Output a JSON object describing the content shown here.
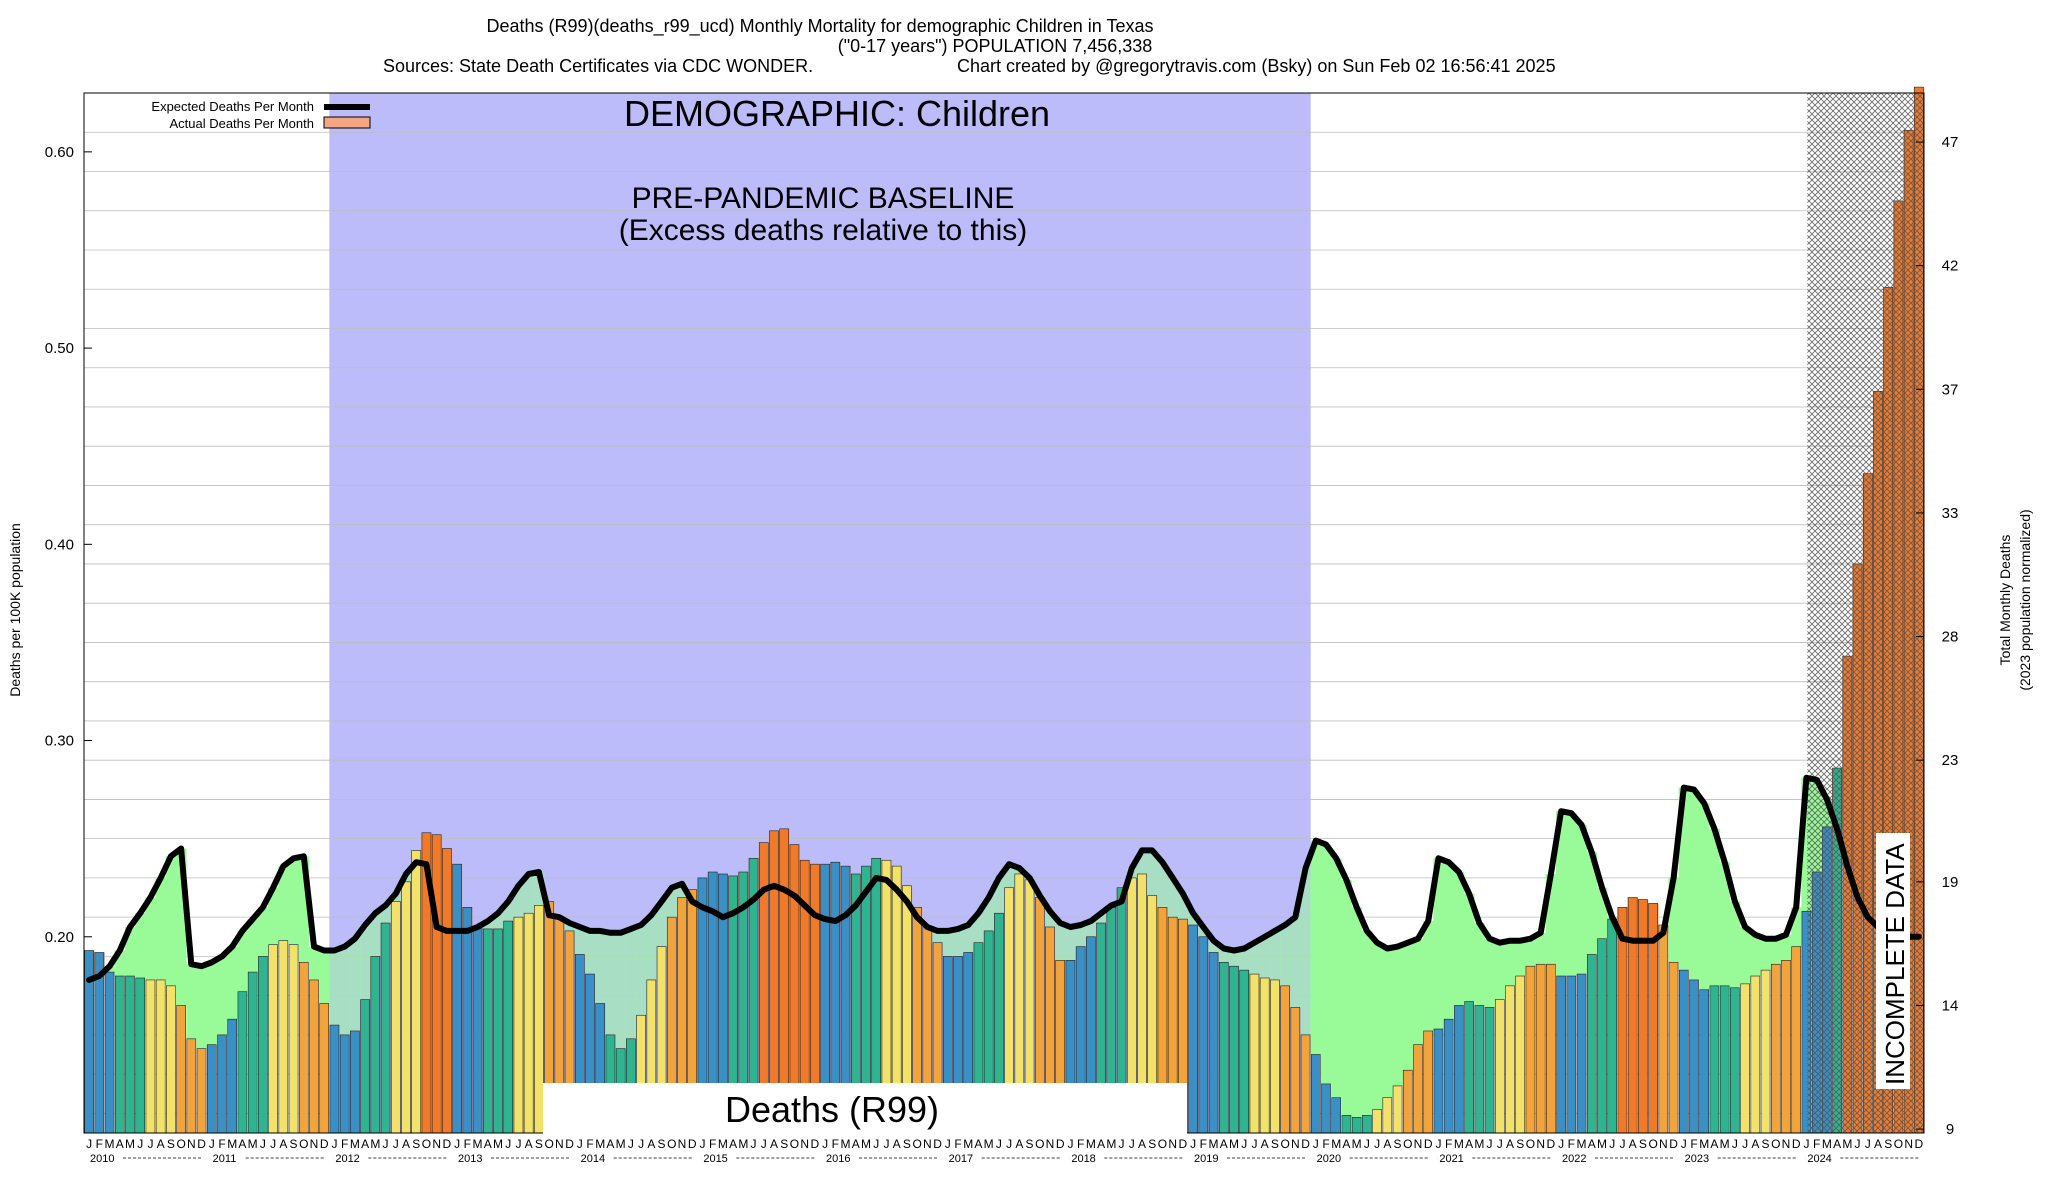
{
  "header": {
    "title_line1": "Deaths (R99)(deaths_r99_ucd) Monthly Mortality for demographic Children in Texas",
    "title_line2": "(\"0-17 years\") POPULATION 7,456,338",
    "title_line3a": "Sources: State Death Certificates via CDC WONDER.",
    "title_line3b": "Chart created by @gregorytravis.com (Bsky) on Sun Feb 02 16:56:41 2025"
  },
  "annotations": {
    "demographic": "DEMOGRAPHIC: Children",
    "baseline_line1": "PRE-PANDEMIC BASELINE",
    "baseline_line2": "(Excess deaths relative to this)",
    "cause_box": "Deaths (R99)",
    "incomplete": "INCOMPLETE DATA"
  },
  "legend": {
    "expected": "Expected Deaths Per Month",
    "actual": "Actual Deaths Per Month"
  },
  "colors": {
    "baseline_region": "#bcbcfb",
    "excess_fill": "#98fb98",
    "deficit_fill": "#f4a582",
    "expected_line": "#000000",
    "bar_winter": "#3a8fc5",
    "bar_spring": "#2fb48f",
    "bar_summer": "#f2e26a",
    "bar_fall": "#f2a33a",
    "bar_high": "#f07a2a",
    "incomplete_hatch": "#888888"
  },
  "chart_data": {
    "type": "bar",
    "y_label_left": "Deaths per 100K population",
    "y_label_right_line1": "Total Monthly Deaths",
    "y_label_right_line2": "(2023 population normalized)",
    "ylim": [
      0.1,
      0.63
    ],
    "y_ticks_left": [
      "0.20",
      "0.30",
      "0.40",
      "0.50",
      "0.60"
    ],
    "y_tick_values_left": [
      0.2,
      0.3,
      0.4,
      0.5,
      0.6
    ],
    "y_ticks_right": [
      "9",
      "14",
      "19",
      "23",
      "28",
      "33",
      "37",
      "42",
      "47"
    ],
    "y_tick_values_right": [
      0.102,
      0.165,
      0.228,
      0.29,
      0.353,
      0.416,
      0.479,
      0.542,
      0.605
    ],
    "month_letters": [
      "J",
      "F",
      "M",
      "A",
      "M",
      "J",
      "J",
      "A",
      "S",
      "O",
      "N",
      "D"
    ],
    "years": [
      "2010",
      "2011",
      "2012",
      "2013",
      "2014",
      "2015",
      "2016",
      "2017",
      "2018",
      "2019",
      "2020",
      "2021",
      "2022",
      "2023",
      "2024"
    ],
    "baseline_period": [
      "2012-01",
      "2019-12"
    ],
    "incomplete_period": [
      "2024-02",
      "2024-12"
    ],
    "grid": true,
    "legend_position": "top-left",
    "series": [
      {
        "name": "Actual Deaths Per Month",
        "values": [
          0.193,
          0.192,
          0.182,
          0.18,
          0.18,
          0.179,
          0.178,
          0.178,
          0.175,
          0.165,
          0.148,
          0.143,
          0.145,
          0.15,
          0.158,
          0.172,
          0.182,
          0.19,
          0.196,
          0.198,
          0.196,
          0.187,
          0.178,
          0.166,
          0.155,
          0.15,
          0.152,
          0.168,
          0.19,
          0.207,
          0.218,
          0.228,
          0.244,
          0.253,
          0.252,
          0.245,
          0.237,
          0.215,
          0.205,
          0.204,
          0.204,
          0.208,
          0.21,
          0.212,
          0.216,
          0.218,
          0.21,
          0.203,
          0.191,
          0.181,
          0.166,
          0.15,
          0.143,
          0.148,
          0.16,
          0.178,
          0.195,
          0.21,
          0.22,
          0.224,
          0.23,
          0.233,
          0.232,
          0.231,
          0.233,
          0.24,
          0.248,
          0.254,
          0.255,
          0.247,
          0.239,
          0.237,
          0.237,
          0.238,
          0.236,
          0.232,
          0.236,
          0.24,
          0.239,
          0.236,
          0.226,
          0.215,
          0.205,
          0.197,
          0.19,
          0.19,
          0.192,
          0.197,
          0.203,
          0.212,
          0.225,
          0.232,
          0.229,
          0.22,
          0.205,
          0.188,
          0.188,
          0.195,
          0.2,
          0.207,
          0.215,
          0.225,
          0.23,
          0.232,
          0.221,
          0.215,
          0.21,
          0.209,
          0.206,
          0.2,
          0.192,
          0.187,
          0.185,
          0.183,
          0.181,
          0.179,
          0.178,
          0.175,
          0.164,
          0.15,
          0.14,
          0.125,
          0.118,
          0.109,
          0.108,
          0.109,
          0.112,
          0.118,
          0.124,
          0.132,
          0.145,
          0.152,
          0.153,
          0.158,
          0.165,
          0.167,
          0.165,
          0.164,
          0.168,
          0.175,
          0.18,
          0.185,
          0.186,
          0.186,
          0.18,
          0.18,
          0.181,
          0.191,
          0.199,
          0.209,
          0.215,
          0.22,
          0.219,
          0.217,
          0.206,
          0.187,
          0.183,
          0.178,
          0.173,
          0.175,
          0.175,
          0.174,
          0.176,
          0.18,
          0.183,
          0.186,
          0.188,
          0.195,
          0.213,
          0.233,
          0.256,
          0.286,
          0.343,
          0.39,
          0.436,
          0.478,
          0.531,
          0.575,
          0.611,
          0.633
        ]
      },
      {
        "name": "Expected Deaths Per Month",
        "values": [
          0.178,
          0.18,
          0.185,
          0.193,
          0.205,
          0.212,
          0.22,
          0.23,
          0.241,
          0.245,
          0.186,
          0.185,
          0.187,
          0.19,
          0.195,
          0.203,
          0.209,
          0.215,
          0.225,
          0.236,
          0.24,
          0.241,
          0.195,
          0.193,
          0.193,
          0.195,
          0.199,
          0.206,
          0.212,
          0.216,
          0.222,
          0.232,
          0.238,
          0.237,
          0.205,
          0.203,
          0.203,
          0.203,
          0.205,
          0.208,
          0.212,
          0.218,
          0.226,
          0.232,
          0.233,
          0.211,
          0.21,
          0.207,
          0.205,
          0.203,
          0.203,
          0.202,
          0.202,
          0.204,
          0.206,
          0.211,
          0.218,
          0.225,
          0.227,
          0.218,
          0.215,
          0.213,
          0.21,
          0.212,
          0.215,
          0.219,
          0.224,
          0.226,
          0.224,
          0.221,
          0.216,
          0.211,
          0.209,
          0.208,
          0.211,
          0.216,
          0.223,
          0.23,
          0.229,
          0.224,
          0.218,
          0.21,
          0.205,
          0.203,
          0.203,
          0.204,
          0.206,
          0.212,
          0.22,
          0.23,
          0.237,
          0.235,
          0.23,
          0.221,
          0.213,
          0.207,
          0.205,
          0.206,
          0.208,
          0.212,
          0.216,
          0.218,
          0.235,
          0.244,
          0.244,
          0.238,
          0.23,
          0.222,
          0.212,
          0.205,
          0.198,
          0.194,
          0.193,
          0.194,
          0.197,
          0.2,
          0.203,
          0.206,
          0.21,
          0.235,
          0.249,
          0.247,
          0.24,
          0.229,
          0.215,
          0.203,
          0.197,
          0.194,
          0.195,
          0.197,
          0.199,
          0.208,
          0.24,
          0.238,
          0.233,
          0.222,
          0.207,
          0.199,
          0.197,
          0.198,
          0.198,
          0.199,
          0.202,
          0.232,
          0.264,
          0.263,
          0.257,
          0.243,
          0.225,
          0.21,
          0.199,
          0.198,
          0.198,
          0.198,
          0.202,
          0.23,
          0.276,
          0.275,
          0.268,
          0.255,
          0.238,
          0.218,
          0.205,
          0.201,
          0.199,
          0.199,
          0.201,
          0.215,
          0.281,
          0.28,
          0.27,
          0.255,
          0.236,
          0.22,
          0.21,
          0.205,
          0.202,
          0.2,
          0.2,
          0.2
        ]
      }
    ]
  }
}
